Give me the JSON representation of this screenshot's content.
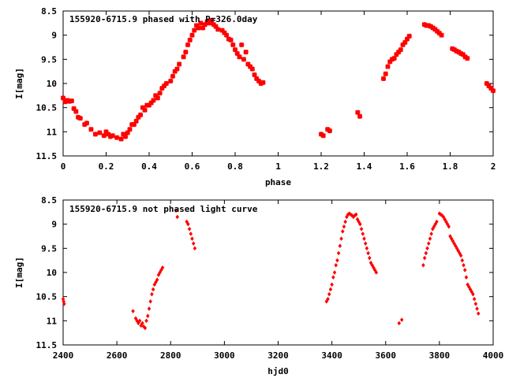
{
  "chart_data": [
    {
      "type": "scatter",
      "title": "155920-6715.9 phased with P=326.0day",
      "xlabel": "phase",
      "ylabel": "I[mag]",
      "xlim": [
        0,
        2
      ],
      "ylim": [
        11.5,
        8.5
      ],
      "y_inverted": true,
      "grid": false,
      "marker_color": "#ff0000",
      "x_ticks": [
        0,
        0.2,
        0.4,
        0.6,
        0.8,
        1,
        1.2,
        1.4,
        1.6,
        1.8,
        2
      ],
      "x_tick_labels": [
        "0",
        "0.2",
        "0.4",
        "0.6",
        "0.8",
        "1",
        "1.2",
        "1.4",
        "1.6",
        "1.8",
        "2"
      ],
      "y_ticks": [
        8.5,
        9,
        9.5,
        10,
        10.5,
        11,
        11.5
      ],
      "y_tick_labels": [
        "8.5",
        "9",
        "9.5",
        "10",
        "10.5",
        "11",
        "11.5"
      ],
      "series": [
        {
          "x": [
            0.0,
            0.01,
            0.02,
            0.03,
            0.04,
            0.05,
            0.06,
            0.07,
            0.08,
            0.1,
            0.11,
            0.13,
            0.15,
            0.17,
            0.19,
            0.2,
            0.21,
            0.22,
            0.23,
            0.25,
            0.27,
            0.28,
            0.29,
            0.3,
            0.31,
            0.32,
            0.33,
            0.34,
            0.35,
            0.36,
            0.37,
            0.38,
            0.39,
            0.4,
            0.41,
            0.42,
            0.43,
            0.44,
            0.45,
            0.46,
            0.47,
            0.48,
            0.5,
            0.51,
            0.52,
            0.53,
            0.54,
            0.56,
            0.57,
            0.58,
            0.59,
            0.6,
            0.61,
            0.62,
            0.63,
            0.64,
            0.65,
            0.66,
            0.67,
            0.68,
            0.69,
            0.7,
            0.71,
            0.72,
            0.74,
            0.75,
            0.76,
            0.77,
            0.78,
            0.79,
            0.8,
            0.81,
            0.82,
            0.83,
            0.84,
            0.85,
            0.86,
            0.87,
            0.88,
            0.89,
            0.9,
            0.91,
            0.92,
            0.93,
            1.2,
            1.21,
            1.23,
            1.24,
            1.37,
            1.38,
            1.49,
            1.5,
            1.51,
            1.52,
            1.53,
            1.54,
            1.55,
            1.56,
            1.57,
            1.58,
            1.59,
            1.6,
            1.61,
            1.68,
            1.69,
            1.7,
            1.71,
            1.72,
            1.73,
            1.74,
            1.75,
            1.76,
            1.81,
            1.82,
            1.83,
            1.84,
            1.85,
            1.86,
            1.87,
            1.88,
            1.97,
            1.98,
            1.99,
            2.0
          ],
          "y": [
            10.3,
            10.38,
            10.35,
            10.37,
            10.36,
            10.52,
            10.58,
            10.7,
            10.72,
            10.85,
            10.82,
            10.95,
            11.05,
            11.02,
            11.08,
            11.0,
            11.05,
            11.1,
            11.08,
            11.12,
            11.15,
            11.05,
            11.1,
            11.02,
            10.95,
            10.85,
            10.85,
            10.78,
            10.7,
            10.65,
            10.5,
            10.55,
            10.45,
            10.45,
            10.4,
            10.35,
            10.25,
            10.3,
            10.2,
            10.1,
            10.05,
            10.0,
            9.95,
            9.85,
            9.75,
            9.7,
            9.6,
            9.45,
            9.35,
            9.2,
            9.1,
            9.0,
            8.9,
            8.8,
            8.85,
            8.75,
            8.85,
            8.78,
            8.72,
            8.75,
            8.7,
            8.78,
            8.82,
            8.88,
            8.9,
            8.95,
            9.0,
            9.08,
            9.1,
            9.2,
            9.3,
            9.38,
            9.45,
            9.2,
            9.5,
            9.35,
            9.6,
            9.65,
            9.7,
            9.82,
            9.9,
            9.95,
            10.0,
            9.98,
            11.05,
            11.08,
            10.95,
            10.98,
            10.6,
            10.68,
            9.9,
            9.8,
            9.65,
            9.55,
            9.5,
            9.48,
            9.4,
            9.35,
            9.3,
            9.2,
            9.15,
            9.08,
            9.02,
            8.78,
            8.8,
            8.8,
            8.82,
            8.85,
            8.88,
            8.92,
            8.96,
            9.0,
            9.28,
            9.3,
            9.33,
            9.35,
            9.38,
            9.4,
            9.45,
            9.48,
            10.0,
            10.05,
            10.1,
            10.15
          ]
        }
      ]
    },
    {
      "type": "scatter",
      "title": "155920-6715.9 not phased light curve",
      "xlabel": "hjd0",
      "ylabel": "I[mag]",
      "xlim": [
        2400,
        4000
      ],
      "ylim": [
        11.5,
        8.5
      ],
      "y_inverted": true,
      "grid": false,
      "marker_color": "#ff0000",
      "x_ticks": [
        2400,
        2600,
        2800,
        3000,
        3200,
        3400,
        3600,
        3800,
        4000
      ],
      "x_tick_labels": [
        "2400",
        "2600",
        "2800",
        "3000",
        "3200",
        "3400",
        "3600",
        "3800",
        "4000"
      ],
      "y_ticks": [
        8.5,
        9,
        9.5,
        10,
        10.5,
        11,
        11.5
      ],
      "y_tick_labels": [
        "8.5",
        "9",
        "9.5",
        "10",
        "10.5",
        "11",
        "11.5"
      ],
      "series": [
        {
          "x": [
            2400,
            2402,
            2404,
            2660,
            2670,
            2675,
            2680,
            2685,
            2690,
            2695,
            2700,
            2705,
            2710,
            2715,
            2720,
            2725,
            2730,
            2735,
            2740,
            2745,
            2750,
            2755,
            2760,
            2765,
            2770,
            2820,
            2825,
            2860,
            2865,
            2870,
            2875,
            2880,
            2885,
            2890,
            3380,
            3385,
            3390,
            3395,
            3400,
            3405,
            3410,
            3415,
            3420,
            3425,
            3430,
            3435,
            3440,
            3445,
            3450,
            3455,
            3460,
            3465,
            3470,
            3475,
            3480,
            3485,
            3490,
            3495,
            3500,
            3505,
            3510,
            3515,
            3520,
            3525,
            3530,
            3535,
            3540,
            3545,
            3550,
            3555,
            3560,
            3565,
            3650,
            3660,
            3740,
            3745,
            3750,
            3755,
            3760,
            3765,
            3770,
            3775,
            3780,
            3785,
            3790,
            3800,
            3805,
            3810,
            3815,
            3820,
            3825,
            3830,
            3835,
            3840,
            3845,
            3850,
            3855,
            3860,
            3865,
            3870,
            3875,
            3880,
            3885,
            3890,
            3895,
            3900,
            3905,
            3910,
            3915,
            3920,
            3925,
            3930,
            3935,
            3940,
            3945
          ],
          "y": [
            10.55,
            10.6,
            10.65,
            10.8,
            10.95,
            11.0,
            11.05,
            11.0,
            11.1,
            11.05,
            11.12,
            11.15,
            11.0,
            10.9,
            10.75,
            10.6,
            10.45,
            10.35,
            10.25,
            10.2,
            10.15,
            10.05,
            10.0,
            9.95,
            9.9,
            8.72,
            8.85,
            8.95,
            9.0,
            9.1,
            9.2,
            9.3,
            9.4,
            9.5,
            10.6,
            10.55,
            10.45,
            10.35,
            10.25,
            10.1,
            10.0,
            9.85,
            9.75,
            9.6,
            9.45,
            9.3,
            9.15,
            9.05,
            8.95,
            8.85,
            8.8,
            8.78,
            8.8,
            8.82,
            8.85,
            8.82,
            8.8,
            8.9,
            8.95,
            9.0,
            9.1,
            9.2,
            9.3,
            9.4,
            9.5,
            9.6,
            9.7,
            9.8,
            9.85,
            9.9,
            9.95,
            10.0,
            11.05,
            10.98,
            9.85,
            9.7,
            9.6,
            9.5,
            9.4,
            9.3,
            9.2,
            9.1,
            9.05,
            9.0,
            8.95,
            8.78,
            8.8,
            8.82,
            8.85,
            8.9,
            8.95,
            9.0,
            9.05,
            9.25,
            9.3,
            9.35,
            9.4,
            9.45,
            9.5,
            9.55,
            9.6,
            9.65,
            9.75,
            9.85,
            9.95,
            10.1,
            10.25,
            10.3,
            10.35,
            10.4,
            10.45,
            10.55,
            10.65,
            10.75,
            10.85
          ]
        }
      ]
    }
  ]
}
